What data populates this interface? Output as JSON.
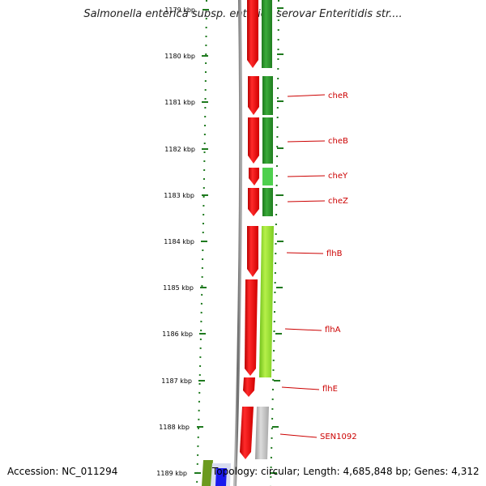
{
  "header": {
    "title": "Salmonella enterica subsp. enterica serovar Enteritidis str...."
  },
  "footer": {
    "accession": "Accession: NC_011294",
    "topology": "Topology: circular; Length: 4,685,848 bp; Genes: 4,312"
  },
  "scale": {
    "ticks": [
      "1179 kbp",
      "1180 kbp",
      "1181 kbp",
      "1182 kbp",
      "1183 kbp",
      "1184 kbp",
      "1185 kbp",
      "1186 kbp",
      "1187 kbp",
      "1188 kbp",
      "1189 kbp"
    ]
  },
  "genes": [
    {
      "name": "cheR"
    },
    {
      "name": "cheB"
    },
    {
      "name": "cheY"
    },
    {
      "name": "cheZ"
    },
    {
      "name": "flhB"
    },
    {
      "name": "flhA"
    },
    {
      "name": "flhE"
    },
    {
      "name": "SEN1092"
    }
  ],
  "colors": {
    "forward_gene": "#ee1111",
    "cds_green": "#2f9a2f",
    "cds_light_green": "#9adf2a",
    "cds_grey": "#bbbbbb",
    "label_red": "#cc0000",
    "tick_green": "#1f7a1f",
    "backbone": "#888888"
  }
}
